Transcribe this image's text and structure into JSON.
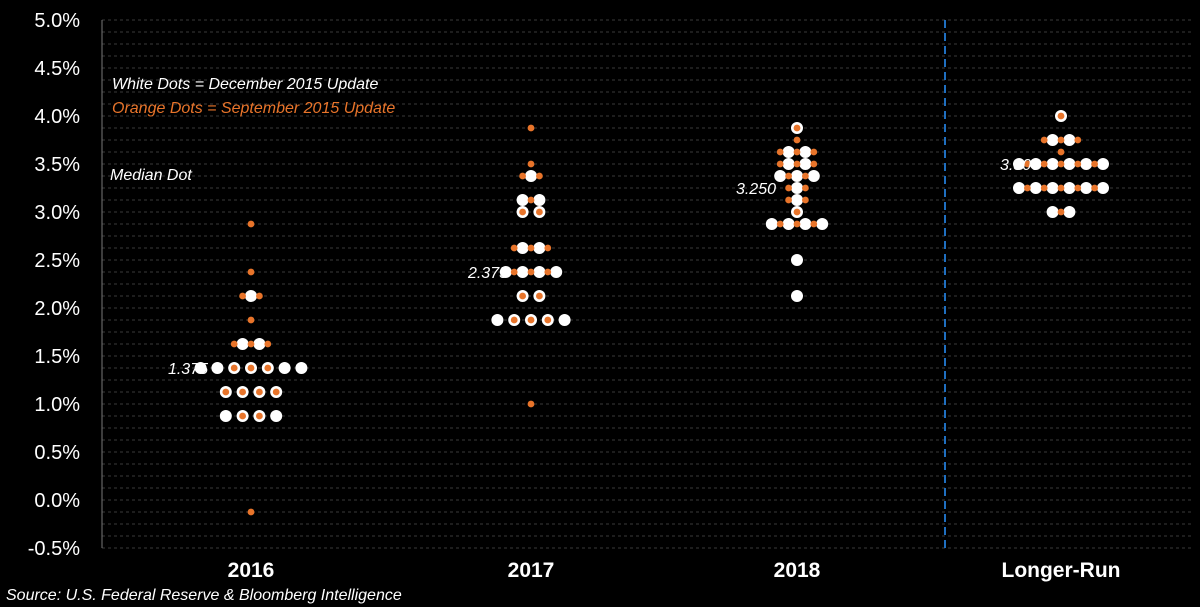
{
  "chart_data": {
    "type": "scatter",
    "title": "",
    "xlabel": "",
    "ylabel": "",
    "categories": [
      "2016",
      "2017",
      "2018",
      "Longer-Run"
    ],
    "y_tick_labels": [
      "-0.5%",
      "0.0%",
      "0.5%",
      "1.0%",
      "1.5%",
      "2.0%",
      "2.5%",
      "3.0%",
      "3.5%",
      "4.0%",
      "4.5%",
      "5.0%"
    ],
    "ylim": [
      -0.5,
      5.0
    ],
    "grid": "dashed horizontal",
    "legend": {
      "position": "top-left",
      "white": "White Dots = December 2015 Update",
      "orange": "Orange Dots = September 2015 Update",
      "median_note": "Median Dot"
    },
    "colors": {
      "white": "#ffffff",
      "orange": "#e8742a",
      "divider": "#1f6fc0",
      "grid": "#3a3a3a"
    },
    "series": [
      {
        "name": "White Dots = December 2015 Update",
        "points": [
          {
            "category": "2016",
            "y": 1.375,
            "count": 7
          },
          {
            "category": "2016",
            "y": 1.125,
            "count": 4
          },
          {
            "category": "2016",
            "y": 0.875,
            "count": 4
          },
          {
            "category": "2016",
            "y": 1.625,
            "count": 2
          },
          {
            "category": "2016",
            "y": 2.125,
            "count": 1
          },
          {
            "category": "2017",
            "y": 1.875,
            "count": 5
          },
          {
            "category": "2017",
            "y": 2.125,
            "count": 2
          },
          {
            "category": "2017",
            "y": 2.375,
            "count": 4
          },
          {
            "category": "2017",
            "y": 2.625,
            "count": 2
          },
          {
            "category": "2017",
            "y": 3.0,
            "count": 2
          },
          {
            "category": "2017",
            "y": 3.125,
            "count": 2
          },
          {
            "category": "2017",
            "y": 3.375,
            "count": 1
          },
          {
            "category": "2018",
            "y": 2.125,
            "count": 1
          },
          {
            "category": "2018",
            "y": 2.5,
            "count": 1
          },
          {
            "category": "2018",
            "y": 2.875,
            "count": 4
          },
          {
            "category": "2018",
            "y": 3.0,
            "count": 1
          },
          {
            "category": "2018",
            "y": 3.125,
            "count": 1
          },
          {
            "category": "2018",
            "y": 3.25,
            "count": 1
          },
          {
            "category": "2018",
            "y": 3.375,
            "count": 3
          },
          {
            "category": "2018",
            "y": 3.5,
            "count": 2
          },
          {
            "category": "2018",
            "y": 3.625,
            "count": 2
          },
          {
            "category": "2018",
            "y": 3.875,
            "count": 1
          },
          {
            "category": "Longer-Run",
            "y": 3.0,
            "count": 2
          },
          {
            "category": "Longer-Run",
            "y": 3.25,
            "count": 6
          },
          {
            "category": "Longer-Run",
            "y": 3.5,
            "count": 6
          },
          {
            "category": "Longer-Run",
            "y": 3.75,
            "count": 2
          },
          {
            "category": "Longer-Run",
            "y": 4.0,
            "count": 1
          }
        ]
      },
      {
        "name": "Orange Dots = September 2015 Update",
        "points": [
          {
            "category": "2016",
            "y": 2.875,
            "count": 1
          },
          {
            "category": "2016",
            "y": 2.375,
            "count": 1
          },
          {
            "category": "2016",
            "y": 2.125,
            "count": 2
          },
          {
            "category": "2016",
            "y": 1.875,
            "count": 1
          },
          {
            "category": "2016",
            "y": 1.625,
            "count": 3
          },
          {
            "category": "2016",
            "y": 1.375,
            "count": 3
          },
          {
            "category": "2016",
            "y": 1.125,
            "count": 4
          },
          {
            "category": "2016",
            "y": 0.875,
            "count": 2
          },
          {
            "category": "2016",
            "y": -0.125,
            "count": 1
          },
          {
            "category": "2017",
            "y": 3.875,
            "count": 1
          },
          {
            "category": "2017",
            "y": 3.5,
            "count": 1
          },
          {
            "category": "2017",
            "y": 3.375,
            "count": 2
          },
          {
            "category": "2017",
            "y": 3.125,
            "count": 1
          },
          {
            "category": "2017",
            "y": 3.0,
            "count": 2
          },
          {
            "category": "2017",
            "y": 2.625,
            "count": 3
          },
          {
            "category": "2017",
            "y": 2.375,
            "count": 3
          },
          {
            "category": "2017",
            "y": 2.125,
            "count": 2
          },
          {
            "category": "2017",
            "y": 1.875,
            "count": 3
          },
          {
            "category": "2017",
            "y": 1.0,
            "count": 1
          },
          {
            "category": "2018",
            "y": 3.875,
            "count": 1
          },
          {
            "category": "2018",
            "y": 3.75,
            "count": 1
          },
          {
            "category": "2018",
            "y": 3.625,
            "count": 3
          },
          {
            "category": "2018",
            "y": 3.5,
            "count": 3
          },
          {
            "category": "2018",
            "y": 3.375,
            "count": 2
          },
          {
            "category": "2018",
            "y": 3.25,
            "count": 2
          },
          {
            "category": "2018",
            "y": 3.125,
            "count": 2
          },
          {
            "category": "2018",
            "y": 3.0,
            "count": 1
          },
          {
            "category": "2018",
            "y": 2.875,
            "count": 3
          },
          {
            "category": "Longer-Run",
            "y": 4.0,
            "count": 1
          },
          {
            "category": "Longer-Run",
            "y": 3.75,
            "count": 3
          },
          {
            "category": "Longer-Run",
            "y": 3.625,
            "count": 1
          },
          {
            "category": "Longer-Run",
            "y": 3.5,
            "count": 5
          },
          {
            "category": "Longer-Run",
            "y": 3.25,
            "count": 5
          },
          {
            "category": "Longer-Run",
            "y": 3.0,
            "count": 1
          }
        ]
      }
    ],
    "medians": [
      {
        "category": "2016",
        "y": 1.375,
        "label": "1.375"
      },
      {
        "category": "2017",
        "y": 2.375,
        "label": "2.375"
      },
      {
        "category": "2018",
        "y": 3.25,
        "label": "3.250"
      },
      {
        "category": "Longer-Run",
        "y": 3.5,
        "label": "3.500"
      }
    ],
    "divider_between": [
      "2018",
      "Longer-Run"
    ]
  },
  "source": "Source: U.S. Federal Reserve & Bloomberg Intelligence"
}
